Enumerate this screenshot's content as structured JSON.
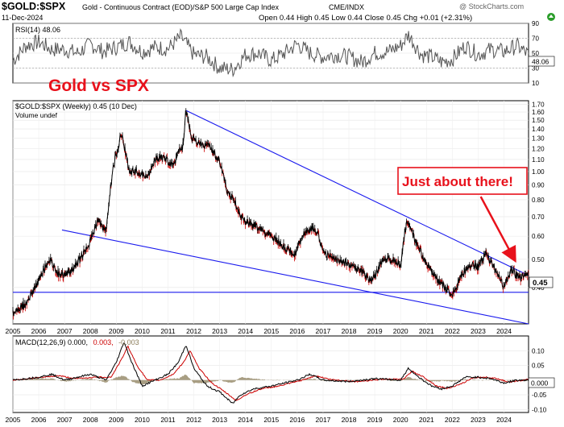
{
  "header": {
    "symbol": "$GOLD:$SPX",
    "description": "Gold - Continuous Contract (EOD)/S&P 500 Large Cap Index",
    "exchange": "CME/INDX",
    "date": "11-Dec-2024",
    "stats": "Open 0.44  High 0.45  Low 0.44  Close 0.45  Chg +0.01 (+2.31%)",
    "stats_arrow": "up-arrow-icon",
    "credit": "@ StockCharts.com"
  },
  "colors": {
    "price": "#000000",
    "down_bar": "#cc0000",
    "trendline": "#1a1aee",
    "annotation": "#e8111b",
    "rsi_line": "#555555",
    "macd_line": "#000000",
    "signal_line": "#cc0000",
    "histogram": "#8b7d5a"
  },
  "chart_data": [
    {
      "type": "line",
      "panel": "RSI",
      "label": "RSI(14) 48.06",
      "ylim": [
        10,
        90
      ],
      "yticks": [
        "90",
        "70",
        "50",
        "30",
        "10"
      ],
      "reference_lines": [
        70,
        30
      ],
      "last_value_label": "48.06",
      "x_range": [
        2005.0,
        2024.95
      ],
      "series": [
        {
          "name": "RSI(14)",
          "points": [
            [
              2005.0,
              40
            ],
            [
              2005.5,
              60
            ],
            [
              2006.0,
              65
            ],
            [
              2006.5,
              55
            ],
            [
              2007.0,
              55
            ],
            [
              2007.5,
              50
            ],
            [
              2008.0,
              62
            ],
            [
              2008.5,
              52
            ],
            [
              2009.0,
              58
            ],
            [
              2009.5,
              65
            ],
            [
              2010.0,
              52
            ],
            [
              2010.5,
              58
            ],
            [
              2011.0,
              56
            ],
            [
              2011.5,
              72
            ],
            [
              2012.0,
              48
            ],
            [
              2012.5,
              45
            ],
            [
              2013.0,
              30
            ],
            [
              2013.5,
              28
            ],
            [
              2014.0,
              48
            ],
            [
              2014.5,
              50
            ],
            [
              2015.0,
              40
            ],
            [
              2015.5,
              50
            ],
            [
              2016.0,
              62
            ],
            [
              2016.5,
              50
            ],
            [
              2017.0,
              45
            ],
            [
              2017.5,
              48
            ],
            [
              2018.0,
              45
            ],
            [
              2018.5,
              38
            ],
            [
              2019.0,
              50
            ],
            [
              2019.5,
              52
            ],
            [
              2020.0,
              60
            ],
            [
              2020.3,
              75
            ],
            [
              2020.8,
              48
            ],
            [
              2021.2,
              45
            ],
            [
              2021.6,
              38
            ],
            [
              2022.0,
              42
            ],
            [
              2022.5,
              60
            ],
            [
              2023.0,
              48
            ],
            [
              2023.5,
              55
            ],
            [
              2024.0,
              52
            ],
            [
              2024.5,
              60
            ],
            [
              2024.95,
              48.06
            ]
          ]
        }
      ]
    },
    {
      "type": "line",
      "panel": "Price",
      "label": "$GOLD:$SPX (Weekly) 0.45 (10 Dec)",
      "sublabel": "Volume undef",
      "title": "Gold vs SPX",
      "scale": "log",
      "ylim": [
        0.3,
        1.75
      ],
      "yticks": [
        "1.70",
        "1.60",
        "1.50",
        "1.40",
        "1.30",
        "1.20",
        "1.10",
        "1.00",
        "0.90",
        "0.80",
        "0.70",
        "0.60",
        "0.50",
        "0.40"
      ],
      "last_value_label": "0.45",
      "x_range": [
        2005.0,
        2024.95
      ],
      "xticks": [
        "2005",
        "2006",
        "2007",
        "2008",
        "2009",
        "2010",
        "2011",
        "2012",
        "2013",
        "2014",
        "2015",
        "2016",
        "2017",
        "2018",
        "2019",
        "2020",
        "2021",
        "2022",
        "2023",
        "2024"
      ],
      "series": [
        {
          "name": "$GOLD:$SPX",
          "points": [
            [
              2005.0,
              0.33
            ],
            [
              2005.5,
              0.35
            ],
            [
              2006.0,
              0.42
            ],
            [
              2006.4,
              0.5
            ],
            [
              2006.8,
              0.44
            ],
            [
              2007.2,
              0.45
            ],
            [
              2007.6,
              0.5
            ],
            [
              2008.0,
              0.58
            ],
            [
              2008.3,
              0.68
            ],
            [
              2008.6,
              0.62
            ],
            [
              2008.9,
              1.05
            ],
            [
              2009.2,
              1.35
            ],
            [
              2009.5,
              1.0
            ],
            [
              2009.8,
              1.0
            ],
            [
              2010.2,
              0.95
            ],
            [
              2010.5,
              1.1
            ],
            [
              2010.8,
              1.12
            ],
            [
              2011.2,
              1.05
            ],
            [
              2011.6,
              1.25
            ],
            [
              2011.7,
              1.62
            ],
            [
              2011.9,
              1.3
            ],
            [
              2012.2,
              1.25
            ],
            [
              2012.6,
              1.22
            ],
            [
              2013.0,
              1.08
            ],
            [
              2013.3,
              0.85
            ],
            [
              2013.6,
              0.78
            ],
            [
              2013.9,
              0.68
            ],
            [
              2014.3,
              0.66
            ],
            [
              2014.7,
              0.62
            ],
            [
              2015.0,
              0.6
            ],
            [
              2015.5,
              0.55
            ],
            [
              2015.9,
              0.52
            ],
            [
              2016.3,
              0.62
            ],
            [
              2016.7,
              0.64
            ],
            [
              2017.0,
              0.53
            ],
            [
              2017.5,
              0.5
            ],
            [
              2018.0,
              0.48
            ],
            [
              2018.5,
              0.45
            ],
            [
              2018.9,
              0.42
            ],
            [
              2019.3,
              0.5
            ],
            [
              2019.7,
              0.5
            ],
            [
              2020.0,
              0.48
            ],
            [
              2020.25,
              0.68
            ],
            [
              2020.6,
              0.57
            ],
            [
              2020.9,
              0.5
            ],
            [
              2021.3,
              0.44
            ],
            [
              2021.7,
              0.4
            ],
            [
              2022.0,
              0.37
            ],
            [
              2022.3,
              0.43
            ],
            [
              2022.7,
              0.48
            ],
            [
              2023.0,
              0.47
            ],
            [
              2023.3,
              0.52
            ],
            [
              2023.7,
              0.45
            ],
            [
              2024.0,
              0.4
            ],
            [
              2024.3,
              0.46
            ],
            [
              2024.6,
              0.43
            ],
            [
              2024.95,
              0.45
            ]
          ]
        }
      ],
      "trendlines": [
        {
          "points": [
            [
              2011.7,
              1.62
            ],
            [
              2024.95,
              0.44
            ]
          ]
        },
        {
          "points": [
            [
              2006.9,
              0.63
            ],
            [
              2024.95,
              0.3
            ]
          ]
        }
      ],
      "horizontal_lines": [
        {
          "y": 0.385
        }
      ],
      "annotations": [
        {
          "text": "Just about there!",
          "arrow_from": [
            2023.1,
            0.82
          ],
          "arrow_to": [
            2024.4,
            0.5
          ]
        }
      ]
    },
    {
      "type": "line",
      "panel": "MACD",
      "label": "MACD(12,26,9) 0.000, 0.003, -0.003",
      "label_parts": [
        "MACD(12,26,9) 0.000,",
        "0.003,",
        "-0.003"
      ],
      "ylim": [
        -0.11,
        0.15
      ],
      "yticks": [
        "0.10",
        "0.05",
        "0.000",
        "-0.05",
        "-0.10"
      ],
      "last_value_label": "0.000",
      "x_range": [
        2005.0,
        2024.95
      ],
      "xticks": [
        "2005",
        "2006",
        "2007",
        "2008",
        "2009",
        "2010",
        "2011",
        "2012",
        "2013",
        "2014",
        "2015",
        "2016",
        "2017",
        "2018",
        "2019",
        "2020",
        "2021",
        "2022",
        "2023",
        "2024"
      ],
      "series": [
        {
          "name": "MACD",
          "points": [
            [
              2005.0,
              0.0
            ],
            [
              2006.0,
              0.01
            ],
            [
              2006.5,
              0.02
            ],
            [
              2007.0,
              0.0
            ],
            [
              2008.0,
              0.02
            ],
            [
              2008.6,
              0.0
            ],
            [
              2009.0,
              0.06
            ],
            [
              2009.3,
              0.13
            ],
            [
              2009.6,
              0.06
            ],
            [
              2010.0,
              -0.02
            ],
            [
              2010.5,
              0.0
            ],
            [
              2011.0,
              0.02
            ],
            [
              2011.4,
              0.06
            ],
            [
              2011.7,
              0.12
            ],
            [
              2012.0,
              0.04
            ],
            [
              2012.5,
              -0.02
            ],
            [
              2013.0,
              -0.04
            ],
            [
              2013.5,
              -0.08
            ],
            [
              2013.8,
              -0.05
            ],
            [
              2014.3,
              -0.03
            ],
            [
              2015.0,
              -0.02
            ],
            [
              2016.0,
              0.0
            ],
            [
              2016.5,
              0.02
            ],
            [
              2017.0,
              0.0
            ],
            [
              2018.0,
              -0.005
            ],
            [
              2019.0,
              0.005
            ],
            [
              2020.0,
              0.0
            ],
            [
              2020.3,
              0.04
            ],
            [
              2020.7,
              0.01
            ],
            [
              2021.2,
              -0.02
            ],
            [
              2021.6,
              -0.03
            ],
            [
              2022.0,
              -0.02
            ],
            [
              2022.5,
              0.01
            ],
            [
              2023.0,
              0.01
            ],
            [
              2023.5,
              0.005
            ],
            [
              2024.0,
              -0.01
            ],
            [
              2024.5,
              0.0
            ],
            [
              2024.95,
              0.0
            ]
          ]
        },
        {
          "name": "Signal",
          "points": [
            [
              2005.0,
              0.0
            ],
            [
              2006.2,
              0.01
            ],
            [
              2006.8,
              0.015
            ],
            [
              2007.4,
              0.005
            ],
            [
              2008.2,
              0.01
            ],
            [
              2008.8,
              0.01
            ],
            [
              2009.2,
              0.07
            ],
            [
              2009.45,
              0.115
            ],
            [
              2009.8,
              0.05
            ],
            [
              2010.2,
              0.0
            ],
            [
              2010.7,
              0.0
            ],
            [
              2011.2,
              0.02
            ],
            [
              2011.6,
              0.06
            ],
            [
              2011.85,
              0.1
            ],
            [
              2012.2,
              0.04
            ],
            [
              2012.7,
              -0.01
            ],
            [
              2013.2,
              -0.04
            ],
            [
              2013.65,
              -0.07
            ],
            [
              2014.0,
              -0.05
            ],
            [
              2014.6,
              -0.03
            ],
            [
              2015.3,
              -0.02
            ],
            [
              2016.2,
              0.0
            ],
            [
              2016.7,
              0.015
            ],
            [
              2017.3,
              0.002
            ],
            [
              2018.3,
              -0.005
            ],
            [
              2019.3,
              0.003
            ],
            [
              2020.1,
              0.003
            ],
            [
              2020.45,
              0.03
            ],
            [
              2020.9,
              0.01
            ],
            [
              2021.4,
              -0.02
            ],
            [
              2021.8,
              -0.028
            ],
            [
              2022.3,
              -0.015
            ],
            [
              2022.8,
              0.008
            ],
            [
              2023.3,
              0.01
            ],
            [
              2023.8,
              0.004
            ],
            [
              2024.2,
              -0.008
            ],
            [
              2024.95,
              0.003
            ]
          ]
        },
        {
          "name": "Histogram",
          "points": [
            [
              2005.0,
              0.0
            ],
            [
              2006.0,
              0.005
            ],
            [
              2006.5,
              0.005
            ],
            [
              2007.0,
              -0.005
            ],
            [
              2008.0,
              0.005
            ],
            [
              2008.6,
              -0.008
            ],
            [
              2009.0,
              0.01
            ],
            [
              2009.3,
              0.015
            ],
            [
              2009.6,
              -0.005
            ],
            [
              2010.0,
              -0.015
            ],
            [
              2010.5,
              0.0
            ],
            [
              2011.0,
              0.005
            ],
            [
              2011.4,
              0.005
            ],
            [
              2011.7,
              0.02
            ],
            [
              2012.0,
              -0.01
            ],
            [
              2012.5,
              -0.01
            ],
            [
              2013.0,
              0.0
            ],
            [
              2013.5,
              -0.01
            ],
            [
              2013.8,
              0.01
            ],
            [
              2014.3,
              0.005
            ],
            [
              2015.0,
              0.0
            ],
            [
              2016.0,
              0.0
            ],
            [
              2016.5,
              0.005
            ],
            [
              2017.0,
              -0.002
            ],
            [
              2018.0,
              0.0
            ],
            [
              2019.0,
              0.002
            ],
            [
              2020.0,
              -0.003
            ],
            [
              2020.3,
              0.01
            ],
            [
              2020.7,
              0.0
            ],
            [
              2021.2,
              -0.005
            ],
            [
              2021.6,
              -0.002
            ],
            [
              2022.0,
              -0.005
            ],
            [
              2022.5,
              0.002
            ],
            [
              2023.0,
              0.0
            ],
            [
              2023.5,
              0.0
            ],
            [
              2024.0,
              -0.002
            ],
            [
              2024.5,
              0.0
            ],
            [
              2024.95,
              -0.003
            ]
          ]
        }
      ]
    }
  ]
}
